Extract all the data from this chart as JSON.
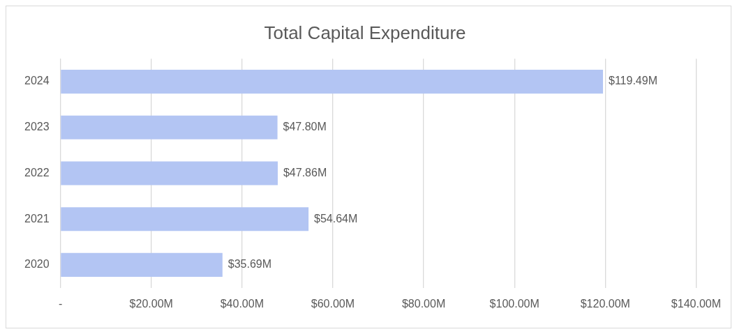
{
  "chart_data": {
    "type": "bar",
    "orientation": "horizontal",
    "title": "Total Capital Expenditure",
    "categories": [
      "2024",
      "2023",
      "2022",
      "2021",
      "2020"
    ],
    "values": [
      119.49,
      47.8,
      47.86,
      54.64,
      35.69
    ],
    "value_labels": [
      "$119.49M",
      "$47.80M",
      "$47.86M",
      "$54.64M",
      "$35.69M"
    ],
    "color": "#b3c5f3",
    "xlim": [
      0,
      140
    ],
    "xticks": [
      {
        "value": 0,
        "label": "-"
      },
      {
        "value": 20,
        "label": "$20.00M"
      },
      {
        "value": 40,
        "label": "$40.00M"
      },
      {
        "value": 60,
        "label": "$60.00M"
      },
      {
        "value": 80,
        "label": "$80.00M"
      },
      {
        "value": 100,
        "label": "$100.00M"
      },
      {
        "value": 120,
        "label": "$120.00M"
      },
      {
        "value": 140,
        "label": "$140.00M"
      }
    ],
    "grid": "x",
    "legend": false
  }
}
